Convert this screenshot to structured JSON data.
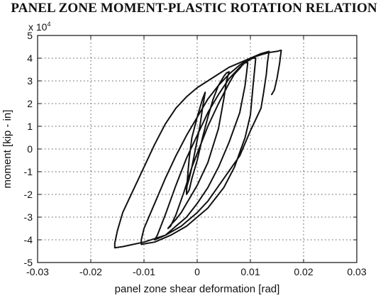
{
  "chart_data": {
    "type": "line",
    "title": "PANEL ZONE MOMENT-PLASTIC ROTATION RELATION",
    "xlabel": "panel zone shear deformation [rad]",
    "ylabel": "moment  [kip - in]",
    "y_multiplier_label": "x 10",
    "y_multiplier_exponent": "4",
    "xlim": [
      -0.03,
      0.03
    ],
    "ylim": [
      -5,
      5
    ],
    "x_ticks": [
      -0.03,
      -0.02,
      -0.01,
      0,
      0.01,
      0.02,
      0.03
    ],
    "x_tick_labels": [
      "-0.03",
      "-0.02",
      "-0.01",
      "0",
      "0.01",
      "0.02",
      "0.03"
    ],
    "y_ticks": [
      -5,
      -4,
      -3,
      -2,
      -1,
      0,
      1,
      2,
      3,
      4,
      5
    ],
    "y_tick_labels": [
      "-5",
      "-4",
      "-3",
      "-2",
      "-1",
      "0",
      "1",
      "2",
      "3",
      "4",
      "5"
    ],
    "grid": true,
    "series": [
      {
        "x": [
          -0.002,
          -0.0018,
          -0.0015,
          -0.001,
          0.0,
          0.001,
          0.0015,
          0.001,
          0.0005,
          -0.0005,
          -0.001,
          -0.0015,
          -0.002,
          -0.002,
          -0.0015,
          -0.001,
          0.0,
          0.001,
          0.002,
          0.003,
          0.004,
          0.005,
          0.0055,
          0.006,
          0.0055,
          0.005,
          0.004,
          0.002,
          0.0,
          -0.002,
          -0.003,
          -0.004,
          -0.005,
          -0.0055,
          -0.005,
          -0.004,
          -0.0025,
          -0.001,
          0.0,
          0.002,
          0.004,
          0.006,
          0.007,
          0.008,
          0.0085,
          0.009,
          0.0095,
          0.0093,
          0.009,
          0.008,
          0.006,
          0.004,
          0.002,
          0.0,
          -0.002,
          -0.004,
          -0.006,
          -0.0075,
          -0.008,
          -0.0075,
          -0.006,
          -0.004,
          -0.002,
          0.0,
          0.002,
          0.004,
          0.006,
          0.008,
          0.009,
          0.01,
          0.0105,
          0.011,
          0.0108,
          0.0105,
          0.0102,
          0.01,
          0.009,
          0.007,
          0.005,
          0.002,
          0.0,
          -0.002,
          -0.005,
          -0.008,
          -0.0105,
          -0.0105,
          -0.01,
          -0.008,
          -0.006,
          -0.004,
          -0.002,
          0.0,
          0.002,
          0.004,
          0.006,
          0.008,
          0.01,
          0.012,
          0.0135,
          0.0132,
          0.013,
          0.0125,
          0.012,
          0.01,
          0.008,
          0.005,
          0.002,
          0.0,
          -0.003,
          -0.006,
          -0.01,
          -0.012,
          -0.014,
          -0.0155,
          -0.0155,
          -0.015,
          -0.014,
          -0.012,
          -0.01,
          -0.008,
          -0.006,
          -0.004,
          -0.002,
          0.0,
          0.002,
          0.004,
          0.006,
          0.008,
          0.01,
          0.012,
          0.0135,
          0.015,
          0.0158,
          0.0155,
          0.015,
          0.0145,
          0.014
        ],
        "y": [
          -1.9,
          -1.2,
          -0.4,
          0.5,
          1.4,
          2.2,
          2.5,
          1.8,
          1.0,
          -0.2,
          -0.8,
          -1.3,
          -1.7,
          -2.0,
          -1.8,
          -1.3,
          -0.5,
          0.5,
          1.4,
          2.2,
          2.8,
          3.2,
          3.35,
          3.4,
          3.0,
          2.2,
          0.9,
          -0.6,
          -1.6,
          -2.4,
          -2.8,
          -3.1,
          -3.35,
          -3.5,
          -3.4,
          -2.9,
          -1.9,
          -0.8,
          -0.2,
          1.0,
          2.0,
          2.9,
          3.3,
          3.55,
          3.7,
          3.8,
          3.8,
          3.4,
          2.8,
          1.6,
          0.3,
          -0.8,
          -1.7,
          -2.4,
          -3.0,
          -3.4,
          -3.8,
          -3.95,
          -4.0,
          -3.8,
          -2.9,
          -1.6,
          -0.4,
          0.6,
          1.6,
          2.4,
          3.1,
          3.6,
          3.8,
          3.95,
          4.0,
          4.0,
          3.5,
          2.8,
          2.0,
          1.5,
          0.5,
          -0.8,
          -1.7,
          -2.6,
          -3.0,
          -3.4,
          -3.8,
          -4.1,
          -4.2,
          -4.0,
          -3.5,
          -2.4,
          -1.3,
          -0.3,
          0.6,
          1.4,
          2.2,
          2.8,
          3.3,
          3.7,
          4.0,
          4.2,
          4.3,
          3.8,
          3.3,
          2.5,
          1.8,
          0.8,
          -0.3,
          -1.3,
          -2.3,
          -2.8,
          -3.4,
          -3.8,
          -4.1,
          -4.2,
          -4.3,
          -4.35,
          -4.15,
          -3.6,
          -2.8,
          -1.8,
          -0.8,
          0.2,
          1.1,
          1.8,
          2.3,
          2.7,
          3.0,
          3.3,
          3.6,
          3.8,
          4.0,
          4.15,
          4.25,
          4.3,
          4.35,
          3.8,
          3.1,
          2.6,
          2.4
        ]
      }
    ]
  }
}
